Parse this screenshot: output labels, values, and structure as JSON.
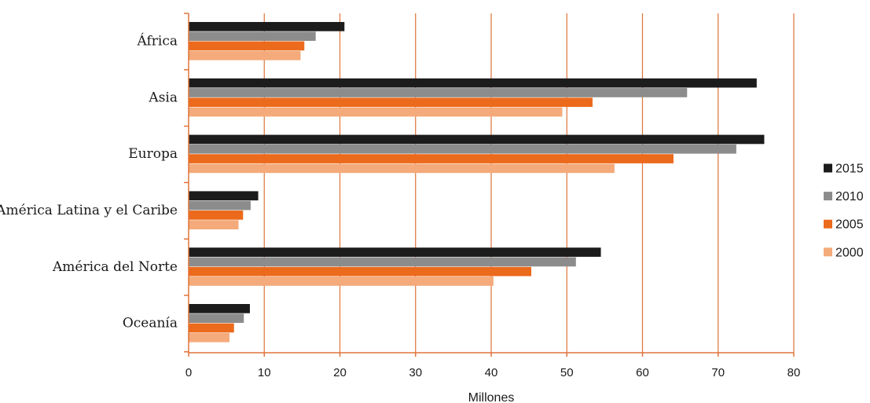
{
  "chart_data": {
    "type": "bar",
    "orientation": "horizontal",
    "title": "",
    "xlabel": "Millones",
    "ylabel": "",
    "xlim": [
      0,
      80
    ],
    "xticks": [
      "0",
      "10",
      "20",
      "30",
      "40",
      "50",
      "60",
      "70",
      "80"
    ],
    "grid": "vertical",
    "legend_position": "right",
    "categories": [
      "África",
      "Asia",
      "Europa",
      "América Latina y el Caribe",
      "América del Norte",
      "Oceanía"
    ],
    "series": [
      {
        "name": "2015",
        "color": "#1c1c1c",
        "values": [
          20.6,
          75.1,
          76.1,
          9.2,
          54.5,
          8.1
        ]
      },
      {
        "name": "2010",
        "color": "#8c8c8c",
        "values": [
          16.8,
          65.9,
          72.4,
          8.2,
          51.2,
          7.3
        ]
      },
      {
        "name": "2005",
        "color": "#ec6a1c",
        "values": [
          15.3,
          53.4,
          64.1,
          7.2,
          45.3,
          6.0
        ]
      },
      {
        "name": "2000",
        "color": "#f4aa7a",
        "values": [
          14.8,
          49.4,
          56.3,
          6.6,
          40.3,
          5.4
        ]
      }
    ],
    "grid_color": "#e0733a",
    "axis_color": "#e0733a"
  }
}
